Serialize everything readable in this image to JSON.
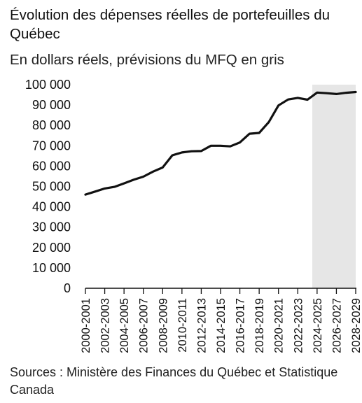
{
  "header": {
    "title": "Évolution des dépenses réelles de portefeuilles du Québec",
    "subtitle": "En dollars réels, prévisions du MFQ en gris"
  },
  "footer": {
    "source": "Sources : Ministère des Finances du Québec et Statistique Canada"
  },
  "chart_data": {
    "type": "line",
    "title": "Évolution des dépenses réelles de portefeuilles du Québec",
    "subtitle": "En dollars réels, prévisions du MFQ en gris",
    "xlabel": "",
    "ylabel": "",
    "ylim": [
      0,
      100000
    ],
    "y_ticks": [
      "0",
      "10 000",
      "20 000",
      "30 000",
      "40 000",
      "50 000",
      "60 000",
      "70 000",
      "80 000",
      "90 000",
      "100 000"
    ],
    "y_tick_values": [
      0,
      10000,
      20000,
      30000,
      40000,
      50000,
      60000,
      70000,
      80000,
      90000,
      100000
    ],
    "x_tick_labels": [
      "2000-2001",
      "2002-2003",
      "2004-2005",
      "2006-2007",
      "2008-2009",
      "2010-2011",
      "2012-2013",
      "2014-2015",
      "2016-2017",
      "2018-2019",
      "2020-2021",
      "2022-2023",
      "2024-2025",
      "2026-2027",
      "2028-2029"
    ],
    "grid": false,
    "legend": "none",
    "forecast_region": {
      "from": "2024-2025",
      "to": "2028-2029",
      "color": "#e6e6e6"
    },
    "line_color": "#111111",
    "categories": [
      "2000-2001",
      "2001-2002",
      "2002-2003",
      "2003-2004",
      "2004-2005",
      "2005-2006",
      "2006-2007",
      "2007-2008",
      "2008-2009",
      "2009-2010",
      "2010-2011",
      "2011-2012",
      "2012-2013",
      "2013-2014",
      "2014-2015",
      "2015-2016",
      "2016-2017",
      "2017-2018",
      "2018-2019",
      "2019-2020",
      "2020-2021",
      "2021-2022",
      "2022-2023",
      "2023-2024",
      "2024-2025",
      "2025-2026",
      "2026-2027",
      "2027-2028",
      "2028-2029"
    ],
    "series": [
      {
        "values": [
          46000,
          47500,
          49000,
          49800,
          51500,
          53300,
          54800,
          57300,
          59300,
          65300,
          66700,
          67300,
          67400,
          70000,
          70000,
          69700,
          71600,
          75900,
          76300,
          81600,
          89800,
          92700,
          93500,
          92600,
          96100,
          95800,
          95400,
          96000,
          96400
        ]
      }
    ]
  }
}
